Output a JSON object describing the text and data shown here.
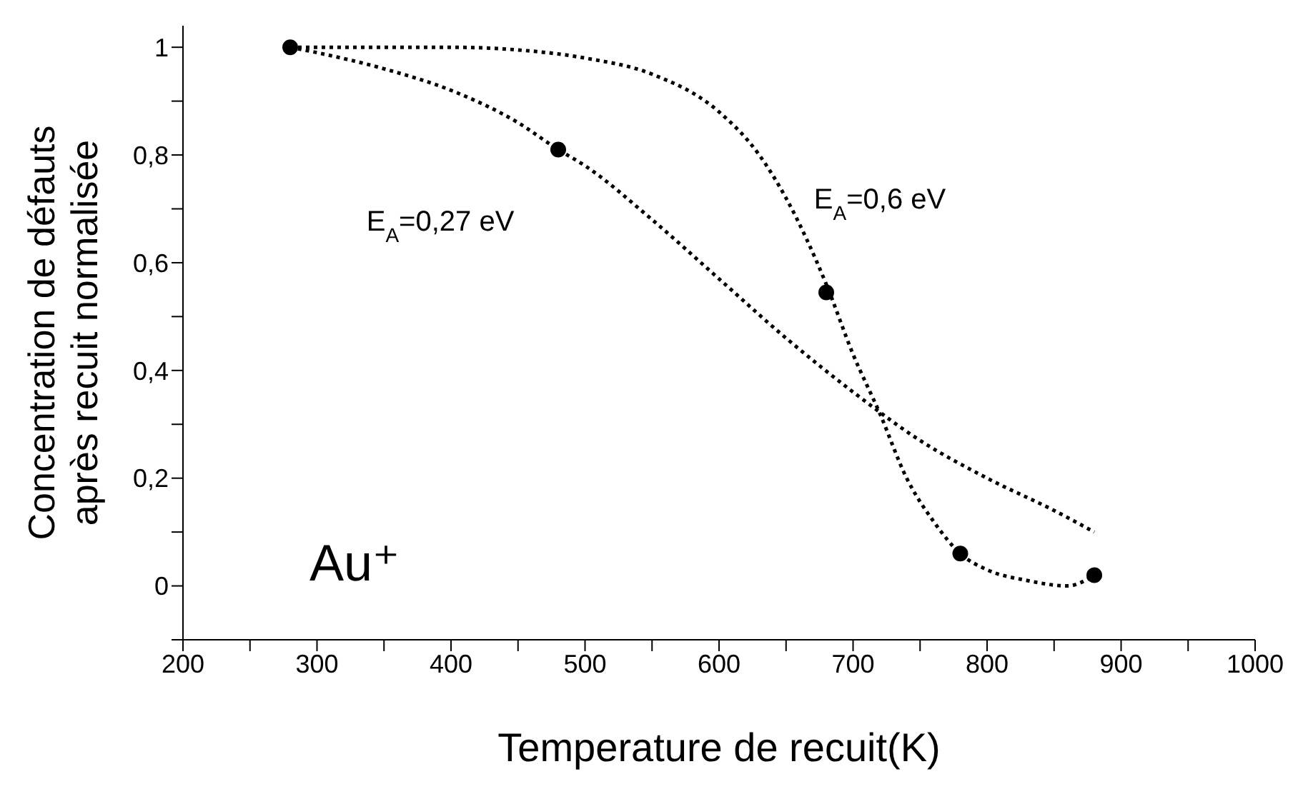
{
  "chart_data": {
    "type": "line",
    "xlabel": "Temperature de recuit(K)",
    "ylabel": "Concentration de défauts après recuit normalisée",
    "xlim": [
      200,
      1000
    ],
    "ylim": [
      -0.1,
      1.04
    ],
    "xticks": [
      200,
      {
        "value": 250,
        "label": null
      },
      300,
      {
        "value": 350,
        "label": null
      },
      400,
      {
        "value": 450,
        "label": null
      },
      500,
      {
        "value": 550,
        "label": null
      },
      600,
      {
        "value": 650,
        "label": null
      },
      700,
      {
        "value": 750,
        "label": null
      },
      800,
      {
        "value": 850,
        "label": null
      },
      900,
      {
        "value": 950,
        "label": null
      },
      1000
    ],
    "yticks": [
      {
        "value": -0.1,
        "label": null
      },
      0,
      {
        "value": 0.1,
        "label": null
      },
      {
        "value": 0.2,
        "label": "0,2"
      },
      {
        "value": 0.3,
        "label": null
      },
      {
        "value": 0.4,
        "label": "0,4"
      },
      {
        "value": 0.5,
        "label": null
      },
      {
        "value": 0.6,
        "label": "0,6"
      },
      {
        "value": 0.7,
        "label": null
      },
      {
        "value": 0.8,
        "label": "0,8"
      },
      {
        "value": 0.9,
        "label": null
      },
      1
    ],
    "series": [
      {
        "color": "#000000",
        "line_style": "dotted",
        "marker": "none",
        "x": [
          280,
          300,
          350,
          400,
          450,
          480,
          500,
          550,
          600,
          650,
          700,
          750,
          800,
          850,
          880
        ],
        "values": [
          1,
          0.99,
          0.96,
          0.92,
          0.86,
          0.81,
          0.78,
          0.68,
          0.57,
          0.46,
          0.36,
          0.27,
          0.2,
          0.14,
          0.1
        ]
      },
      {
        "color": "#000000",
        "line_style": "dotted",
        "marker": "none",
        "x": [
          280,
          350,
          400,
          450,
          500,
          550,
          600,
          630,
          650,
          680,
          700,
          720,
          740,
          760,
          780,
          800,
          830,
          860,
          880
        ],
        "values": [
          1,
          1,
          1,
          0.995,
          0.98,
          0.95,
          0.88,
          0.8,
          0.72,
          0.56,
          0.43,
          0.32,
          0.2,
          0.12,
          0.06,
          0.03,
          0.01,
          0,
          0.02
        ]
      },
      {
        "type": "scatter",
        "color": "#000000",
        "marker": "circle",
        "x": [
          280,
          480,
          680,
          780,
          880
        ],
        "values": [
          1,
          0.81,
          0.545,
          0.06,
          0.02
        ]
      }
    ],
    "annotations": [
      "E$_{A}$=0,27 eV",
      "E$_{A}$=0,6 eV",
      "Au⁺"
    ]
  }
}
